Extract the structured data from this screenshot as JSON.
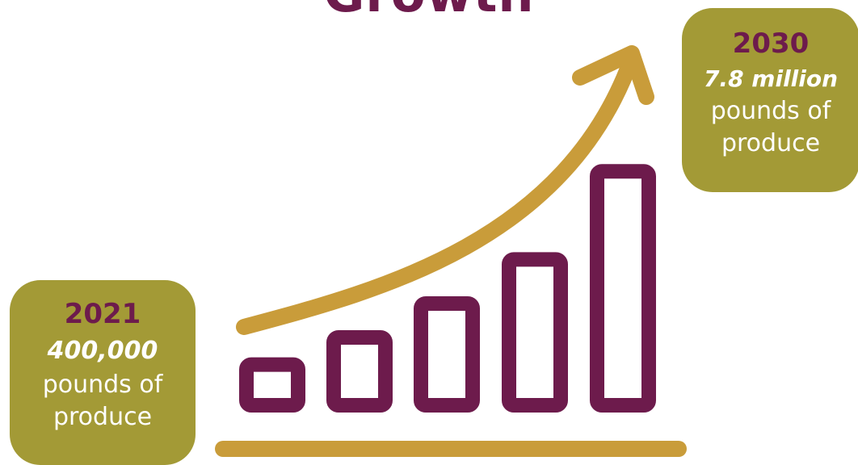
{
  "title": "Growth",
  "colors": {
    "bars": "#6d1b4c",
    "arrow": "#c99c3a",
    "callout_bg": "#a39a36",
    "text_light": "#ffffff"
  },
  "icon": "rising-bar-chart-with-arrow",
  "bar_levels": [
    0.12,
    0.2,
    0.3,
    0.43,
    0.69
  ],
  "callouts": [
    {
      "year": "2021",
      "amount": "400,000",
      "unit": "pounds of produce"
    },
    {
      "year": "2030",
      "amount": "7.8 million",
      "unit": "pounds of produce"
    }
  ]
}
